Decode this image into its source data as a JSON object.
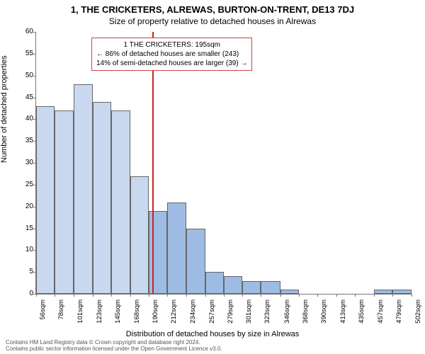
{
  "title": "1, THE CRICKETERS, ALREWAS, BURTON-ON-TRENT, DE13 7DJ",
  "subtitle": "Size of property relative to detached houses in Alrewas",
  "y_axis_label": "Number of detached properties",
  "x_axis_label": "Distribution of detached houses by size in Alrewas",
  "footer_line1": "Contains HM Land Registry data © Crown copyright and database right 2024.",
  "footer_line2": "Contains public sector information licensed under the Open Government Licence v3.0.",
  "annotation": {
    "line1": "1 THE CRICKETERS: 195sqm",
    "line2": "← 86% of detached houses are smaller (243)",
    "line3": "14% of semi-detached houses are larger (39) →",
    "border_color": "#cc4444"
  },
  "chart": {
    "type": "histogram",
    "ylim": [
      0,
      60
    ],
    "ytick_step": 5,
    "x_categories": [
      "56sqm",
      "78sqm",
      "101sqm",
      "123sqm",
      "145sqm",
      "168sqm",
      "190sqm",
      "212sqm",
      "234sqm",
      "257sqm",
      "279sqm",
      "301sqm",
      "323sqm",
      "346sqm",
      "368sqm",
      "390sqm",
      "413sqm",
      "435sqm",
      "457sqm",
      "479sqm",
      "502sqm"
    ],
    "x_numeric": [
      56,
      78,
      101,
      123,
      145,
      168,
      190,
      212,
      234,
      257,
      279,
      301,
      323,
      346,
      368,
      390,
      413,
      435,
      457,
      479,
      502
    ],
    "bar_edges": [
      56,
      78,
      101,
      123,
      145,
      168,
      190,
      212,
      234,
      257,
      279,
      301,
      323,
      346,
      368,
      390,
      413,
      435,
      457,
      479,
      502
    ],
    "values": [
      43,
      42,
      48,
      44,
      42,
      27,
      19,
      21,
      15,
      5,
      4,
      3,
      3,
      1,
      0,
      0,
      0,
      0,
      1,
      1
    ],
    "marker_x": 195,
    "bar_fill_left": "#c9d8ef",
    "bar_fill_right": "#9ebce3",
    "bar_border": "#666666",
    "marker_color": "#cc2222",
    "background": "#ffffff",
    "axis_color": "#777777",
    "tick_fontsize": 10,
    "label_fontsize": 11,
    "title_fontsize": 13
  }
}
